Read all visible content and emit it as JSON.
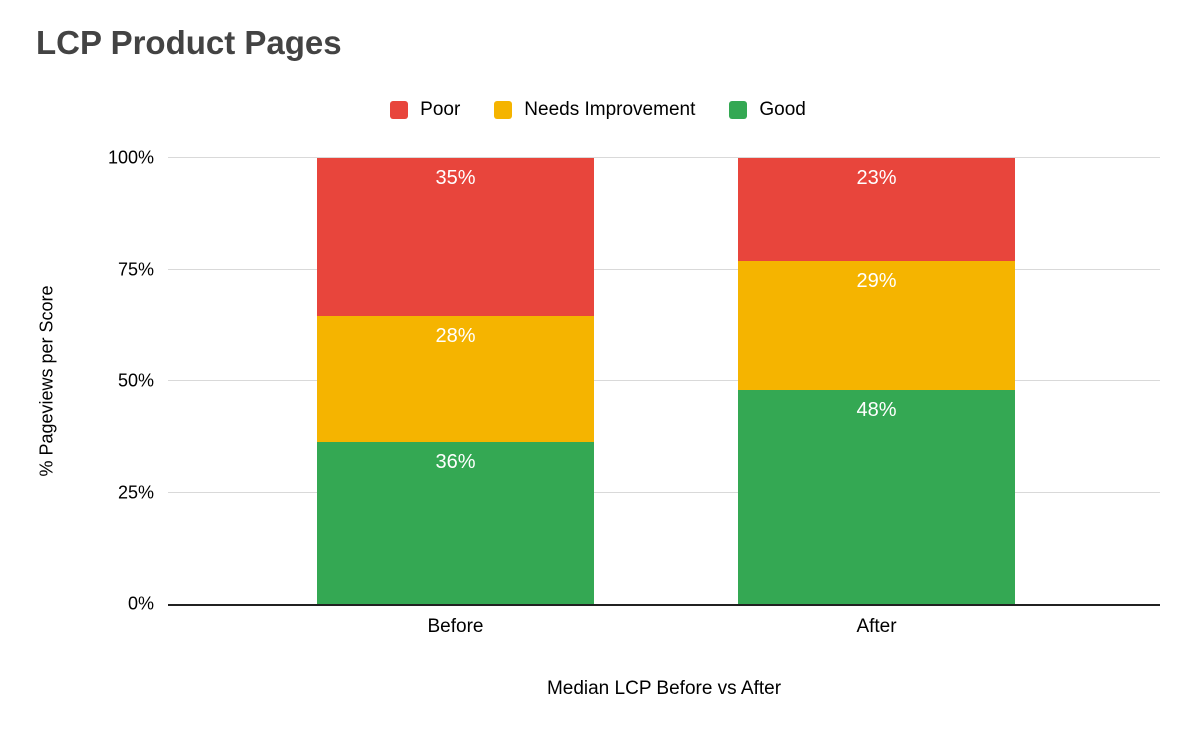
{
  "chart_data": {
    "type": "bar",
    "stacked": true,
    "title": "LCP Product Pages",
    "xlabel": "Median LCP Before vs After",
    "ylabel": "% Pageviews per Score",
    "categories": [
      "Before",
      "After"
    ],
    "series": [
      {
        "name": "Good",
        "color": "#34a853",
        "values": [
          36,
          48
        ]
      },
      {
        "name": "Needs Improvement",
        "color": "#f5b400",
        "values": [
          28,
          29
        ]
      },
      {
        "name": "Poor",
        "color": "#e8453c",
        "values": [
          35,
          23
        ]
      }
    ],
    "legend_order": [
      "Poor",
      "Needs Improvement",
      "Good"
    ],
    "legend_position": "top",
    "yticks": [
      "0%",
      "25%",
      "50%",
      "75%",
      "100%"
    ],
    "ylim": [
      0,
      100
    ],
    "grid": true,
    "colors": {
      "gridline": "#d9d9d9",
      "axis": "#212121",
      "title_text": "#434343",
      "data_label_text": "#ffffff"
    }
  }
}
